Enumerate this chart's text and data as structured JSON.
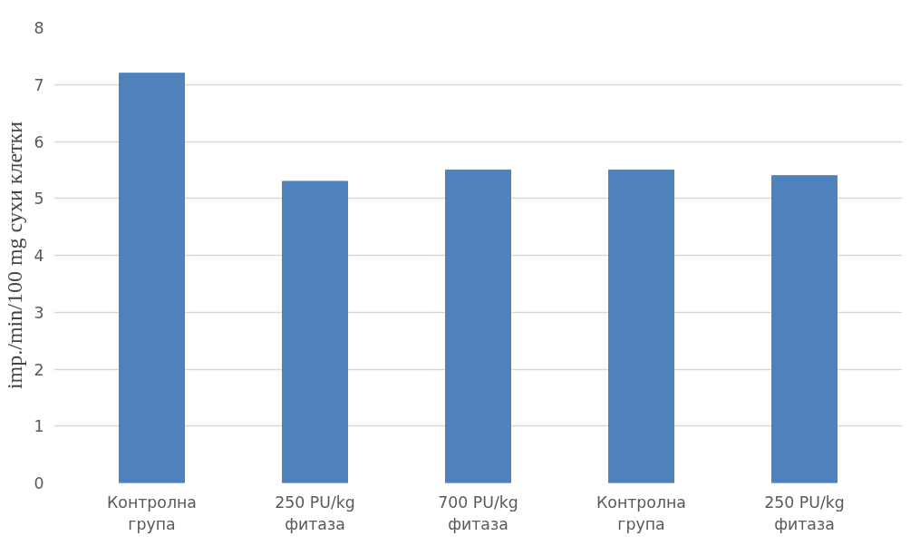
{
  "chart_data": {
    "type": "bar",
    "ylabel": "imp./min/100 mg сухи клетки",
    "categories": [
      "Контролна група",
      "250 PU/kg фитаза",
      "700 PU/kg фитаза",
      "Контролна група",
      "250 PU/kg фитаза"
    ],
    "values": [
      7.2,
      5.3,
      5.5,
      5.5,
      5.4
    ],
    "color": "#4f81bd",
    "ylim": [
      0,
      8
    ],
    "yticks": [
      0,
      1,
      2,
      3,
      4,
      5,
      6,
      7,
      8
    ],
    "grid": "y"
  }
}
